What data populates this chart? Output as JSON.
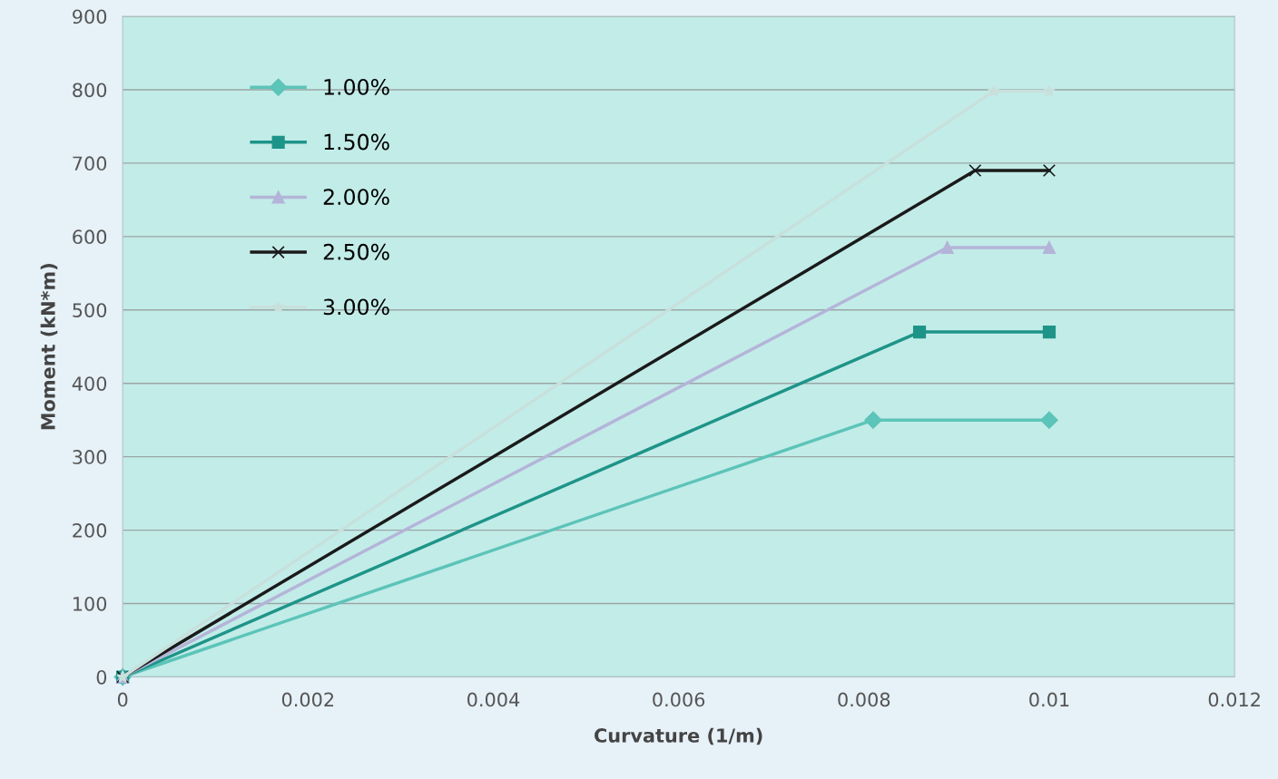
{
  "chart_data": {
    "type": "line",
    "xlabel": "Curvature (1/m)",
    "ylabel": "Moment (kN*m)",
    "xlim": [
      0,
      0.012
    ],
    "xticks": [
      0,
      0.002,
      0.004,
      0.006,
      0.008,
      0.01,
      0.012
    ],
    "ylim": [
      0,
      900
    ],
    "yticks": [
      0,
      100,
      200,
      300,
      400,
      500,
      600,
      700,
      800,
      900
    ],
    "grid": "y",
    "legend": "top left",
    "series": [
      {
        "name": "1.00%",
        "color": "#5cc4b8",
        "marker": "diamond",
        "x": [
          0,
          0.0081,
          0.01
        ],
        "values": [
          0,
          350,
          350
        ]
      },
      {
        "name": "1.50%",
        "color": "#1e9488",
        "marker": "square",
        "x": [
          0,
          0.0086,
          0.01
        ],
        "values": [
          0,
          470,
          470
        ]
      },
      {
        "name": "2.00%",
        "color": "#b4b4d8",
        "marker": "triangle",
        "x": [
          0,
          0.0089,
          0.01
        ],
        "values": [
          0,
          585,
          585
        ]
      },
      {
        "name": "2.50%",
        "color": "#1a1a1a",
        "marker": "cross",
        "x": [
          0,
          0.0092,
          0.01
        ],
        "values": [
          0,
          690,
          690
        ]
      },
      {
        "name": "3.00%",
        "color": "#c8e0dc",
        "marker": "star",
        "x": [
          0,
          0.0094,
          0.01
        ],
        "values": [
          0,
          798,
          798
        ]
      }
    ]
  }
}
